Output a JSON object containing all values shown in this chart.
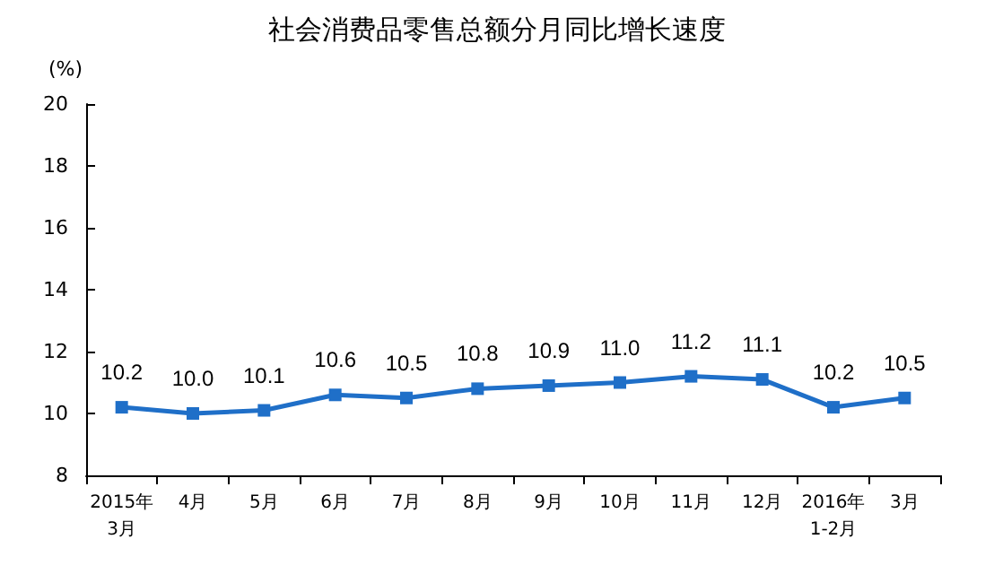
{
  "chart_data": {
    "type": "line",
    "title": "社会消费品零售总额分月同比增长速度",
    "ylabel": "(%)",
    "categories": [
      "2015年\n3月",
      "4月",
      "5月",
      "6月",
      "7月",
      "8月",
      "9月",
      "10月",
      "11月",
      "12月",
      "2016年\n1-2月",
      "3月"
    ],
    "series": [
      {
        "color": "#1f6fc8",
        "values": [
          10.2,
          10.0,
          10.1,
          10.6,
          10.5,
          10.8,
          10.9,
          11.0,
          11.2,
          11.1,
          10.2,
          10.5
        ],
        "value_labels": [
          "10.2",
          "10.0",
          "10.1",
          "10.6",
          "10.5",
          "10.8",
          "10.9",
          "11.0",
          "11.2",
          "11.1",
          "10.2",
          "10.5"
        ]
      }
    ],
    "ylim": [
      8,
      20
    ],
    "yticks": [
      8,
      10,
      12,
      14,
      16,
      18,
      20
    ],
    "grid": false,
    "marker": "square",
    "line_style": "solid"
  }
}
